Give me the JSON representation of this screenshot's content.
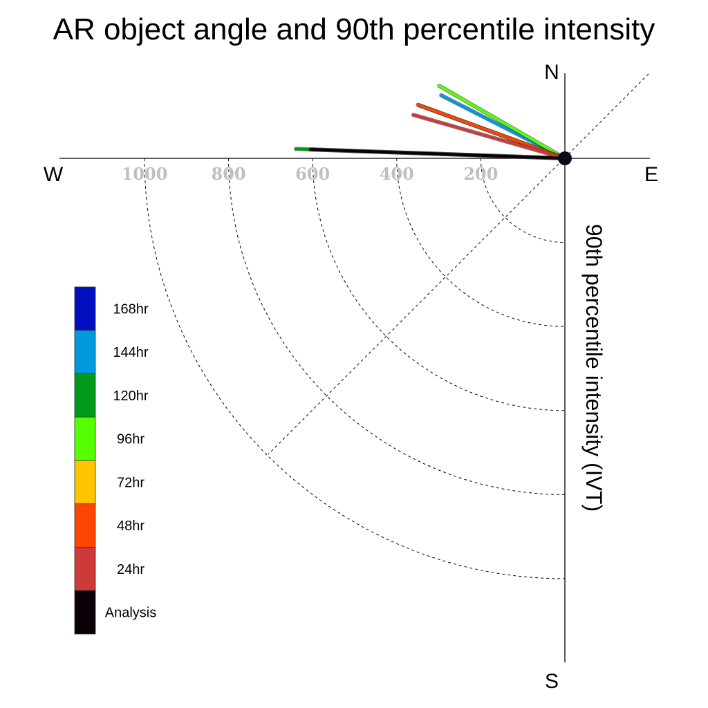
{
  "chart_data": {
    "type": "polar-vector",
    "title": "AR object angle and 90th percentile intensity",
    "radial_label": "90th percentile intensity (IVT)",
    "directions": {
      "north": "N",
      "south": "S",
      "west": "W",
      "east": "E"
    },
    "radial_ticks": [
      200,
      400,
      600,
      800,
      1000
    ],
    "radial_tick_labels": [
      "200",
      "400",
      "600",
      "800",
      "1000"
    ],
    "rmax": 1000,
    "grid": true,
    "legend_position": "left",
    "series": [
      {
        "name": "168hr",
        "color": "#0010c0",
        "angle_deg": 153,
        "intensity": 0
      },
      {
        "name": "144hr",
        "color": "#0099dd",
        "angle_deg": 153,
        "intensity": 330
      },
      {
        "name": "120hr",
        "color": "#009a1a",
        "angle_deg": 178,
        "intensity": 640
      },
      {
        "name": "96hr",
        "color": "#55ff00",
        "angle_deg": 150,
        "intensity": 345
      },
      {
        "name": "72hr",
        "color": "#ffc400",
        "angle_deg": 160,
        "intensity": 370
      },
      {
        "name": "48hr",
        "color": "#ff4400",
        "angle_deg": 160,
        "intensity": 372
      },
      {
        "name": "24hr",
        "color": "#cc3a3a",
        "angle_deg": 164,
        "intensity": 375
      },
      {
        "name": "Analysis",
        "color": "#0a0008",
        "angle_deg": 178,
        "intensity": 605
      }
    ]
  }
}
